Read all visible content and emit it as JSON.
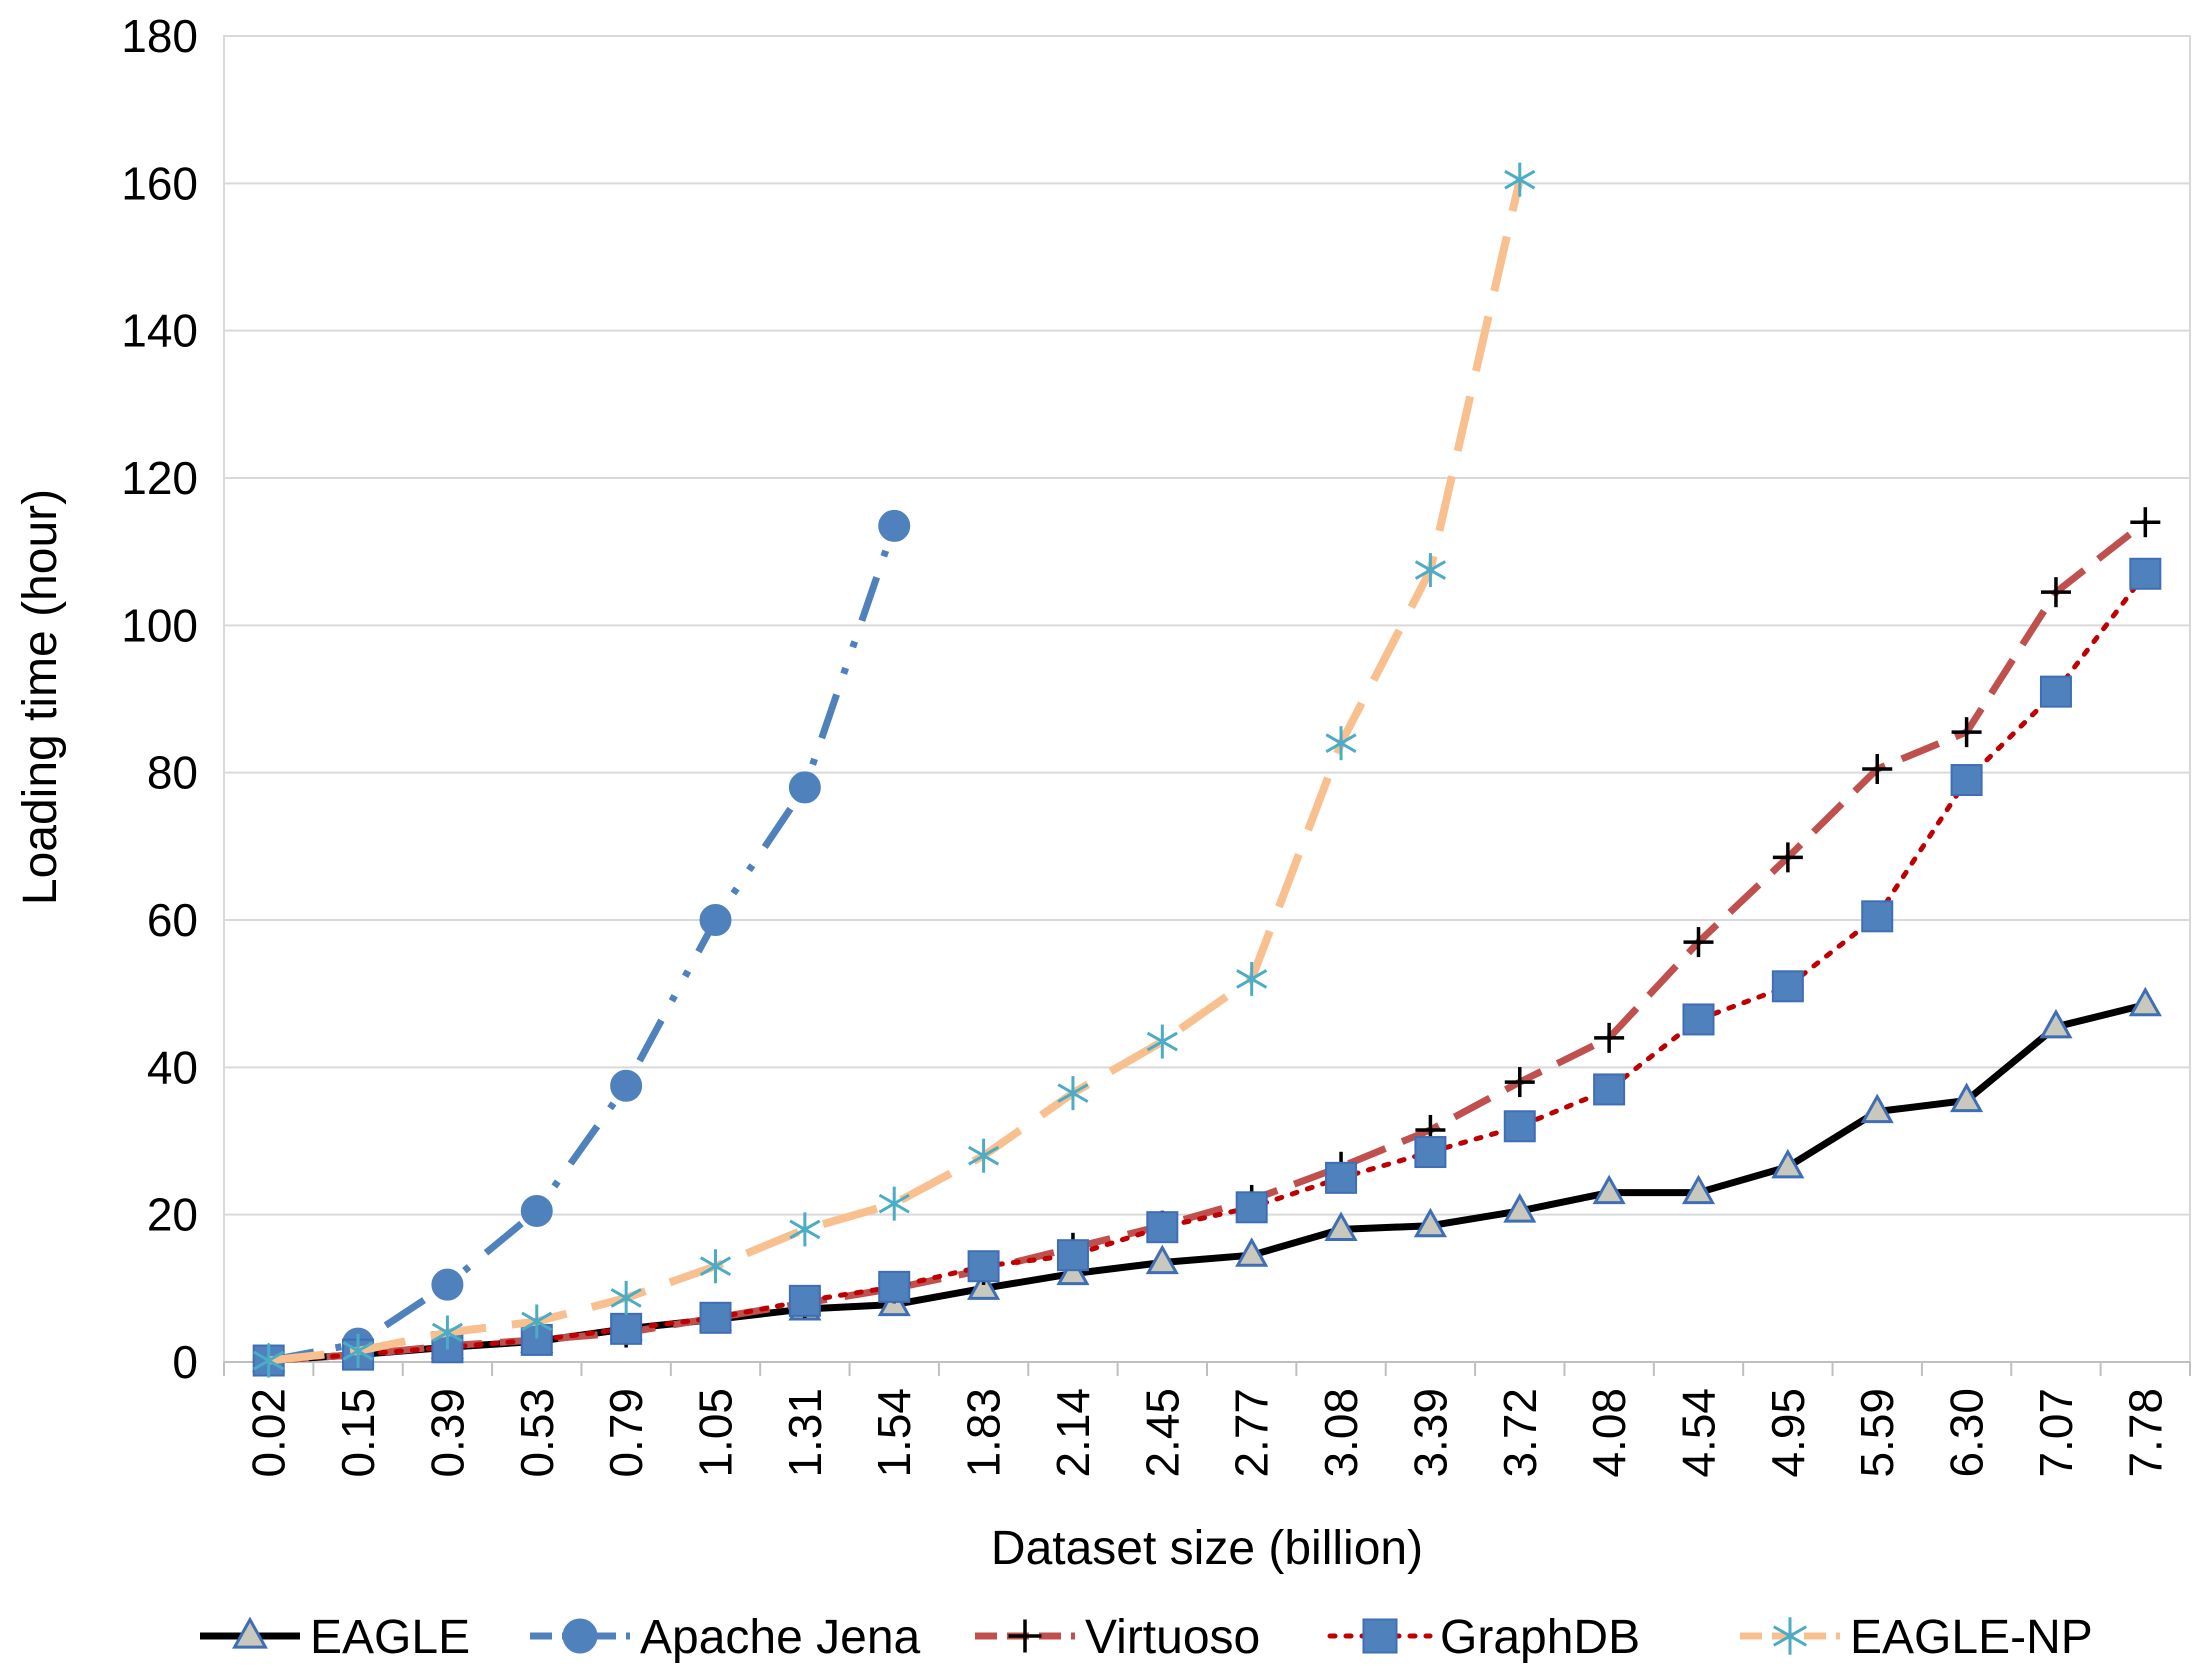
{
  "chart_data": {
    "type": "line",
    "title": "",
    "xlabel": "Dataset size (billion)",
    "ylabel": "Loading time (hour)",
    "ylim": [
      0,
      180
    ],
    "yticks": [
      0,
      20,
      40,
      60,
      80,
      100,
      120,
      140,
      160,
      180
    ],
    "grid": true,
    "legend_position": "bottom",
    "categories": [
      "0.02",
      "0.15",
      "0.39",
      "0.53",
      "0.79",
      "1.05",
      "1.31",
      "1.54",
      "1.83",
      "2.14",
      "2.45",
      "2.77",
      "3.08",
      "3.39",
      "3.72",
      "4.08",
      "4.54",
      "4.95",
      "5.59",
      "6.30",
      "7.07",
      "7.78"
    ],
    "series": [
      {
        "name": "EAGLE",
        "line_color": "#000000",
        "marker_fill": "#c8c8bc",
        "marker_stroke": "#3f6eb5",
        "marker": "triangle",
        "dash": "solid",
        "values": [
          0.2,
          1.0,
          2.0,
          2.8,
          4.5,
          5.8,
          7.2,
          7.8,
          10,
          12,
          13.5,
          14.5,
          18,
          18.5,
          20.5,
          23,
          23,
          26.5,
          34,
          35.5,
          45.5,
          48.5
        ]
      },
      {
        "name": "Apache Jena",
        "line_color": "#4f81bd",
        "marker_fill": "#4f81bd",
        "marker_stroke": "#4f81bd",
        "marker": "circle",
        "dash": "dashdotdot",
        "values": [
          0.2,
          2.5,
          10.5,
          20.5,
          37.5,
          60,
          78,
          113.5,
          null,
          null,
          null,
          null,
          null,
          null,
          null,
          null,
          null,
          null,
          null,
          null,
          null,
          null
        ]
      },
      {
        "name": "Virtuoso",
        "line_color": "#c0504d",
        "marker_fill": "#000000",
        "marker_stroke": "#000000",
        "marker": "plus",
        "dash": "dash",
        "values": [
          0.2,
          1.0,
          2.2,
          3.0,
          4.0,
          6.0,
          8.0,
          10.0,
          12.5,
          15.5,
          18.5,
          22.0,
          26.5,
          31.5,
          38.0,
          44.0,
          57.0,
          68.5,
          80.5,
          85.5,
          104.5,
          114.0
        ]
      },
      {
        "name": "GraphDB",
        "line_color": "#c00000",
        "marker_fill": "#4f81bd",
        "marker_stroke": "#3f6eb5",
        "marker": "square",
        "dash": "dot",
        "values": [
          0.2,
          1.0,
          2.0,
          3.0,
          4.5,
          6.0,
          8.3,
          10.2,
          13.0,
          14.5,
          18.3,
          21.0,
          25.0,
          28.5,
          32.0,
          37.0,
          46.5,
          51.0,
          60.5,
          79.0,
          91.0,
          107.0
        ]
      },
      {
        "name": "EAGLE-NP",
        "line_color": "#f9c08f",
        "marker_fill": "#4bacc6",
        "marker_stroke": "#4bacc6",
        "marker": "asterisk",
        "dash": "longdash",
        "values": [
          0.2,
          1.5,
          4.0,
          5.5,
          8.7,
          13.0,
          18.0,
          21.5,
          28.0,
          36.5,
          43.5,
          52.0,
          84.0,
          107.5,
          160.5,
          null,
          null,
          null,
          null,
          null,
          null,
          null
        ]
      }
    ]
  }
}
